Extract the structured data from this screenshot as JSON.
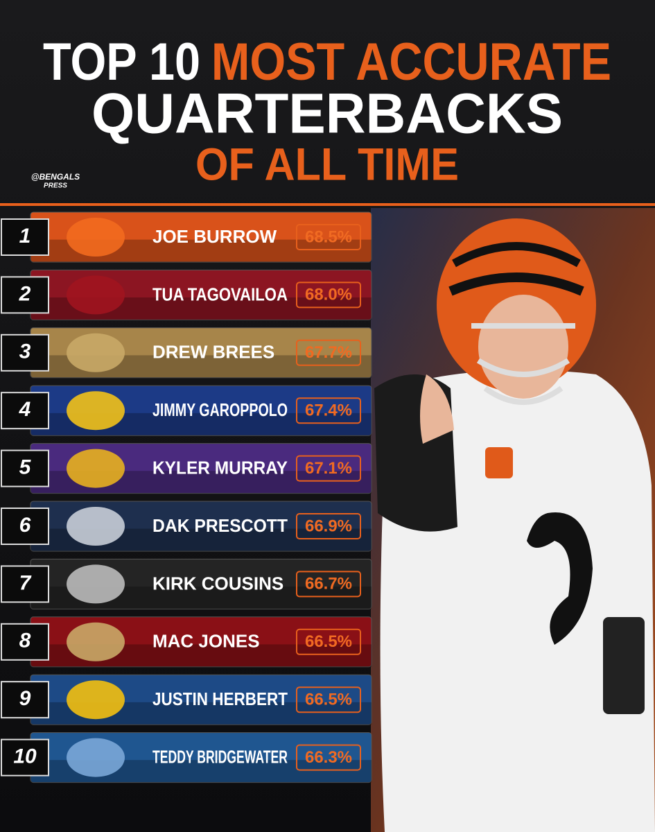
{
  "header": {
    "title_white": "TOP 10",
    "title_orange": "MOST ACCURATE",
    "line2": "QUARTERBACKS",
    "line3": "OF ALL TIME",
    "handle_top": "@BENGALS",
    "handle_bottom": "PRESS"
  },
  "rows": [
    {
      "rank": "1",
      "name": "JOE BURROW",
      "value": "68.5%"
    },
    {
      "rank": "2",
      "name": "TUA TAGOVAILOA",
      "value": "68.0%"
    },
    {
      "rank": "3",
      "name": "DREW BREES",
      "value": "67.7%"
    },
    {
      "rank": "4",
      "name": "JIMMY GAROPPOLO",
      "value": "67.4%"
    },
    {
      "rank": "5",
      "name": "KYLER MURRAY",
      "value": "67.1%"
    },
    {
      "rank": "6",
      "name": "DAK PRESCOTT",
      "value": "66.9%"
    },
    {
      "rank": "7",
      "name": "KIRK COUSINS",
      "value": "66.7%"
    },
    {
      "rank": "8",
      "name": "MAC JONES",
      "value": "66.5%"
    },
    {
      "rank": "9",
      "name": "JUSTIN HERBERT",
      "value": "66.5%"
    },
    {
      "rank": "10",
      "name": "TEDDY BRIDGEWATER",
      "value": "66.3%"
    }
  ]
}
